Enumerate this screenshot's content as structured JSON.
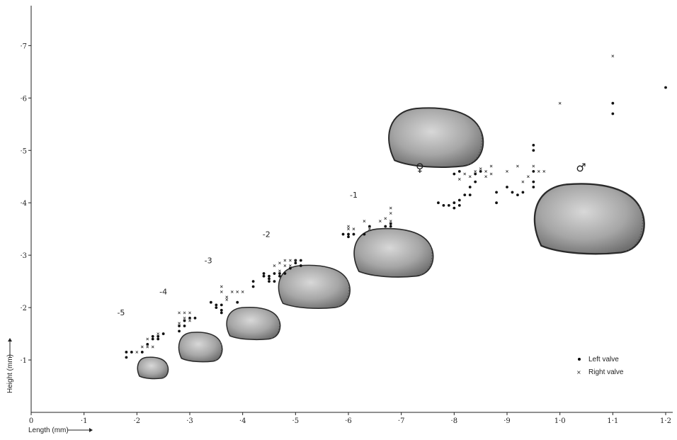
{
  "chart_data": {
    "type": "scatter",
    "xlabel": "Length (mm)",
    "ylabel": "Height (mm)",
    "xlim": [
      0,
      1.2
    ],
    "ylim": [
      0,
      0.76
    ],
    "x_ticks": [
      0,
      0.1,
      0.2,
      0.3,
      0.4,
      0.5,
      0.6,
      0.7,
      0.8,
      0.9,
      1.0,
      1.1,
      1.2
    ],
    "x_tick_labels": [
      "0",
      "·1",
      "·2",
      "·3",
      "·4",
      "·5",
      "·6",
      "·7",
      "·8",
      "·9",
      "1·0",
      "1·1",
      "1·2"
    ],
    "y_ticks": [
      0.1,
      0.2,
      0.3,
      0.4,
      0.5,
      0.6,
      0.7
    ],
    "y_tick_labels": [
      "·1",
      "·2",
      "·3",
      "·4",
      "·5",
      "·6",
      "·7"
    ],
    "legend": {
      "position": "bottom-right",
      "entries": [
        "Left valve",
        "Right valve"
      ]
    },
    "series": [
      {
        "name": "Left valve",
        "marker": "dot",
        "points": [
          [
            0.18,
            0.105
          ],
          [
            0.18,
            0.115
          ],
          [
            0.19,
            0.115
          ],
          [
            0.21,
            0.115
          ],
          [
            0.22,
            0.13
          ],
          [
            0.23,
            0.14
          ],
          [
            0.23,
            0.145
          ],
          [
            0.24,
            0.14
          ],
          [
            0.24,
            0.145
          ],
          [
            0.25,
            0.15
          ],
          [
            0.28,
            0.155
          ],
          [
            0.28,
            0.165
          ],
          [
            0.29,
            0.165
          ],
          [
            0.29,
            0.175
          ],
          [
            0.3,
            0.18
          ],
          [
            0.31,
            0.18
          ],
          [
            0.34,
            0.21
          ],
          [
            0.35,
            0.205
          ],
          [
            0.35,
            0.2
          ],
          [
            0.36,
            0.195
          ],
          [
            0.36,
            0.19
          ],
          [
            0.36,
            0.205
          ],
          [
            0.39,
            0.21
          ],
          [
            0.42,
            0.24
          ],
          [
            0.42,
            0.25
          ],
          [
            0.44,
            0.26
          ],
          [
            0.44,
            0.265
          ],
          [
            0.45,
            0.25
          ],
          [
            0.45,
            0.255
          ],
          [
            0.45,
            0.26
          ],
          [
            0.46,
            0.25
          ],
          [
            0.46,
            0.265
          ],
          [
            0.47,
            0.26
          ],
          [
            0.47,
            0.265
          ],
          [
            0.48,
            0.265
          ],
          [
            0.49,
            0.275
          ],
          [
            0.5,
            0.285
          ],
          [
            0.51,
            0.28
          ],
          [
            0.51,
            0.29
          ],
          [
            0.5,
            0.29
          ],
          [
            0.59,
            0.34
          ],
          [
            0.6,
            0.335
          ],
          [
            0.6,
            0.34
          ],
          [
            0.61,
            0.34
          ],
          [
            0.63,
            0.34
          ],
          [
            0.64,
            0.355
          ],
          [
            0.67,
            0.355
          ],
          [
            0.68,
            0.355
          ],
          [
            0.68,
            0.36
          ],
          [
            0.77,
            0.4
          ],
          [
            0.78,
            0.395
          ],
          [
            0.79,
            0.395
          ],
          [
            0.8,
            0.39
          ],
          [
            0.8,
            0.4
          ],
          [
            0.81,
            0.395
          ],
          [
            0.81,
            0.405
          ],
          [
            0.82,
            0.415
          ],
          [
            0.83,
            0.415
          ],
          [
            0.83,
            0.43
          ],
          [
            0.84,
            0.44
          ],
          [
            0.84,
            0.455
          ],
          [
            0.85,
            0.46
          ],
          [
            0.8,
            0.455
          ],
          [
            0.81,
            0.46
          ],
          [
            0.88,
            0.4
          ],
          [
            0.88,
            0.42
          ],
          [
            0.9,
            0.43
          ],
          [
            0.91,
            0.42
          ],
          [
            0.92,
            0.415
          ],
          [
            0.93,
            0.42
          ],
          [
            0.95,
            0.43
          ],
          [
            0.95,
            0.44
          ],
          [
            0.95,
            0.46
          ],
          [
            0.95,
            0.5
          ],
          [
            0.95,
            0.51
          ],
          [
            1.1,
            0.57
          ],
          [
            1.1,
            0.59
          ],
          [
            1.2,
            0.62
          ]
        ]
      },
      {
        "name": "Right valve",
        "marker": "x",
        "points": [
          [
            0.2,
            0.115
          ],
          [
            0.21,
            0.125
          ],
          [
            0.22,
            0.125
          ],
          [
            0.23,
            0.125
          ],
          [
            0.22,
            0.14
          ],
          [
            0.24,
            0.15
          ],
          [
            0.28,
            0.19
          ],
          [
            0.29,
            0.19
          ],
          [
            0.3,
            0.19
          ],
          [
            0.29,
            0.18
          ],
          [
            0.3,
            0.175
          ],
          [
            0.28,
            0.17
          ],
          [
            0.36,
            0.24
          ],
          [
            0.36,
            0.23
          ],
          [
            0.37,
            0.22
          ],
          [
            0.37,
            0.215
          ],
          [
            0.38,
            0.23
          ],
          [
            0.39,
            0.23
          ],
          [
            0.4,
            0.23
          ],
          [
            0.46,
            0.28
          ],
          [
            0.47,
            0.285
          ],
          [
            0.48,
            0.29
          ],
          [
            0.49,
            0.29
          ],
          [
            0.5,
            0.29
          ],
          [
            0.47,
            0.27
          ],
          [
            0.48,
            0.28
          ],
          [
            0.49,
            0.28
          ],
          [
            0.6,
            0.35
          ],
          [
            0.6,
            0.355
          ],
          [
            0.61,
            0.35
          ],
          [
            0.63,
            0.365
          ],
          [
            0.64,
            0.35
          ],
          [
            0.66,
            0.365
          ],
          [
            0.67,
            0.37
          ],
          [
            0.68,
            0.39
          ],
          [
            0.68,
            0.38
          ],
          [
            0.68,
            0.365
          ],
          [
            0.81,
            0.445
          ],
          [
            0.82,
            0.455
          ],
          [
            0.83,
            0.45
          ],
          [
            0.84,
            0.46
          ],
          [
            0.85,
            0.465
          ],
          [
            0.86,
            0.46
          ],
          [
            0.87,
            0.455
          ],
          [
            0.87,
            0.47
          ],
          [
            0.86,
            0.45
          ],
          [
            0.9,
            0.46
          ],
          [
            0.92,
            0.47
          ],
          [
            0.93,
            0.44
          ],
          [
            0.94,
            0.45
          ],
          [
            0.95,
            0.47
          ],
          [
            0.96,
            0.46
          ],
          [
            0.97,
            0.46
          ],
          [
            1.0,
            0.59
          ],
          [
            1.1,
            0.68
          ]
        ]
      }
    ],
    "stage_labels": [
      {
        "text": "-5",
        "x": 0.17,
        "y": 0.185
      },
      {
        "text": "-4",
        "x": 0.25,
        "y": 0.225
      },
      {
        "text": "-3",
        "x": 0.335,
        "y": 0.285
      },
      {
        "text": "-2",
        "x": 0.445,
        "y": 0.335
      },
      {
        "text": "-1",
        "x": 0.61,
        "y": 0.41
      }
    ],
    "sex_symbols": [
      {
        "text": "♀",
        "x": 0.735,
        "y": 0.46
      },
      {
        "text": "♂",
        "x": 1.04,
        "y": 0.46
      }
    ],
    "shells": [
      {
        "cx": 0.23,
        "cy": 0.085,
        "w": 0.06,
        "h": 0.04
      },
      {
        "cx": 0.32,
        "cy": 0.125,
        "w": 0.085,
        "h": 0.055
      },
      {
        "cx": 0.42,
        "cy": 0.17,
        "w": 0.105,
        "h": 0.06
      },
      {
        "cx": 0.535,
        "cy": 0.24,
        "w": 0.14,
        "h": 0.08
      },
      {
        "cx": 0.685,
        "cy": 0.305,
        "w": 0.155,
        "h": 0.09
      },
      {
        "cx": 0.765,
        "cy": 0.525,
        "w": 0.185,
        "h": 0.11
      },
      {
        "cx": 1.055,
        "cy": 0.37,
        "w": 0.215,
        "h": 0.13
      }
    ]
  }
}
